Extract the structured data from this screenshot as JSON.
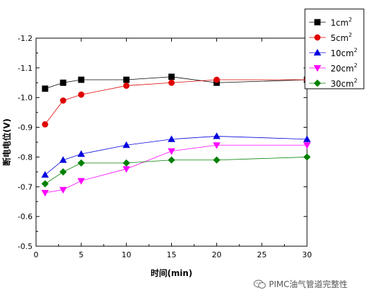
{
  "chart_data": {
    "type": "line",
    "x": [
      1,
      3,
      5,
      10,
      15,
      20,
      30
    ],
    "xlabel": "时间(min)",
    "ylabel": "断电电位(V)",
    "xlim": [
      0,
      30
    ],
    "ylim": [
      -1.2,
      -0.5
    ],
    "y_axis_inverted": true,
    "x_ticks": [
      "0",
      "5",
      "10",
      "15",
      "20",
      "25",
      "30"
    ],
    "y_ticks": [
      "-1.2",
      "-1.1",
      "-1.0",
      "-0.9",
      "-0.8",
      "-0.7",
      "-0.6",
      "-0.5"
    ],
    "grid": false,
    "legend_position": "top-right",
    "series": [
      {
        "name": "1cm",
        "unit_sup": "2",
        "color": "#000000",
        "marker": "square",
        "values": [
          -1.03,
          -1.05,
          -1.06,
          -1.06,
          -1.07,
          -1.05,
          -1.06
        ]
      },
      {
        "name": "5cm",
        "unit_sup": "2",
        "color": "#e00000",
        "marker": "circle",
        "values": [
          -0.91,
          -0.99,
          -1.01,
          -1.04,
          -1.05,
          -1.06,
          -1.06
        ]
      },
      {
        "name": "10cm",
        "unit_sup": "2",
        "color": "#0000e0",
        "marker": "triangle-up",
        "values": [
          -0.74,
          -0.79,
          -0.81,
          -0.84,
          -0.86,
          -0.87,
          -0.86
        ]
      },
      {
        "name": "20cm",
        "unit_sup": "2",
        "color": "#ff00ff",
        "marker": "triangle-down",
        "values": [
          -0.68,
          -0.69,
          -0.72,
          -0.76,
          -0.82,
          -0.84,
          -0.84
        ]
      },
      {
        "name": "30cm",
        "unit_sup": "2",
        "color": "#008000",
        "marker": "diamond",
        "values": [
          -0.71,
          -0.75,
          -0.78,
          -0.78,
          -0.79,
          -0.79,
          -0.8
        ]
      }
    ]
  },
  "watermark": {
    "icon": "wechat-icon",
    "text": "PIMC油气管道完整性"
  }
}
